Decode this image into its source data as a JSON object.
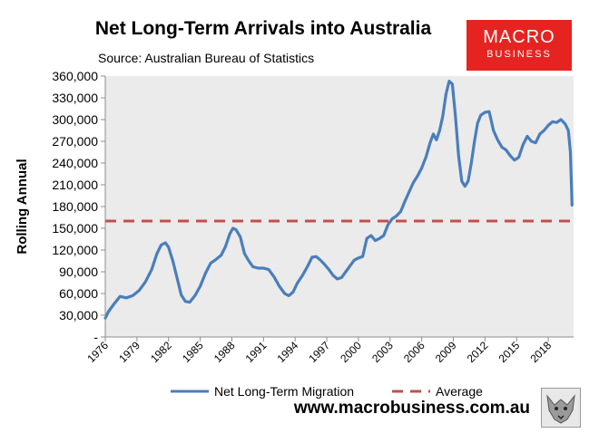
{
  "header": {
    "title": "Net Long-Term Arrivals into Australia",
    "subtitle": "Source: Australian Bureau of Statistics"
  },
  "brand": {
    "line1": "MACRO",
    "line2": "BUSINESS",
    "color": "#e52421",
    "website": "www.macrobusiness.com.au"
  },
  "chart_data": {
    "type": "line",
    "title": "Net Long-Term Arrivals into Australia",
    "subtitle": "Source: Australian Bureau of Statistics",
    "xlabel": "",
    "ylabel": "Rolling Annual",
    "xlim": [
      1976,
      2020.4
    ],
    "ylim": [
      0,
      360000
    ],
    "ytick_values": [
      0,
      30000,
      60000,
      90000,
      120000,
      150000,
      180000,
      210000,
      240000,
      270000,
      300000,
      330000,
      360000
    ],
    "ytick_labels": [
      "-",
      "30,000",
      "60,000",
      "90,000",
      "120,000",
      "150,000",
      "180,000",
      "210,000",
      "240,000",
      "270,000",
      "300,000",
      "330,000",
      "360,000"
    ],
    "xtick_labels": [
      "1976",
      "1979",
      "1982",
      "1985",
      "1988",
      "1991",
      "1994",
      "1997",
      "2000",
      "2003",
      "2006",
      "2009",
      "2012",
      "2015",
      "2018"
    ],
    "grid": false,
    "legend_position": "bottom",
    "series": [
      {
        "name": "Net Long-Term Migration",
        "color": "#4a7ebb",
        "style": "solid",
        "x": [
          1976.0,
          1976.3,
          1976.8,
          1977.4,
          1978.0,
          1978.6,
          1979.2,
          1979.8,
          1980.4,
          1980.9,
          1981.3,
          1981.7,
          1982.0,
          1982.4,
          1982.8,
          1983.2,
          1983.6,
          1984.0,
          1984.5,
          1985.0,
          1985.5,
          1986.0,
          1986.5,
          1987.0,
          1987.4,
          1987.8,
          1988.1,
          1988.4,
          1988.8,
          1989.2,
          1989.6,
          1990.0,
          1990.5,
          1991.0,
          1991.5,
          1992.0,
          1992.5,
          1993.0,
          1993.4,
          1993.8,
          1994.2,
          1994.7,
          1995.2,
          1995.6,
          1996.0,
          1996.4,
          1996.8,
          1997.2,
          1997.6,
          1998.0,
          1998.4,
          1998.8,
          1999.2,
          1999.6,
          2000.0,
          2000.4,
          2000.8,
          2001.2,
          2001.6,
          2002.0,
          2002.4,
          2002.8,
          2003.2,
          2003.6,
          2004.0,
          2004.4,
          2004.8,
          2005.2,
          2005.6,
          2006.0,
          2006.4,
          2006.8,
          2007.1,
          2007.4,
          2007.7,
          2008.0,
          2008.3,
          2008.6,
          2008.9,
          2009.2,
          2009.5,
          2009.8,
          2010.1,
          2010.4,
          2010.7,
          2011.0,
          2011.3,
          2011.6,
          2012.0,
          2012.4,
          2012.8,
          2013.2,
          2013.6,
          2014.0,
          2014.4,
          2014.8,
          2015.2,
          2015.6,
          2016.0,
          2016.4,
          2016.8,
          2017.2,
          2017.6,
          2018.0,
          2018.4,
          2018.8,
          2019.2,
          2019.6,
          2019.9,
          2020.1,
          2020.25
        ],
        "values": [
          26000,
          35000,
          45000,
          56000,
          54000,
          57000,
          64000,
          76000,
          93000,
          115000,
          127000,
          130000,
          124000,
          105000,
          82000,
          58000,
          49000,
          48000,
          57000,
          70000,
          88000,
          102000,
          107000,
          113000,
          125000,
          142000,
          150000,
          148000,
          138000,
          115000,
          105000,
          97000,
          95000,
          95000,
          93000,
          83000,
          70000,
          60000,
          57000,
          62000,
          74000,
          85000,
          98000,
          110000,
          111000,
          106000,
          100000,
          93000,
          85000,
          80000,
          82000,
          90000,
          98000,
          106000,
          109000,
          111000,
          136000,
          140000,
          133000,
          136000,
          140000,
          155000,
          163000,
          167000,
          173000,
          187000,
          200000,
          213000,
          222000,
          233000,
          248000,
          268000,
          280000,
          272000,
          285000,
          305000,
          335000,
          353000,
          349000,
          305000,
          250000,
          215000,
          208000,
          215000,
          240000,
          270000,
          295000,
          306000,
          310000,
          311000,
          285000,
          272000,
          262000,
          258000,
          250000,
          244000,
          248000,
          265000,
          277000,
          270000,
          268000,
          280000,
          285000,
          292000,
          297000,
          296000,
          300000,
          294000,
          285000,
          255000,
          182000
        ]
      },
      {
        "name": "Average",
        "color": "#c0504d",
        "style": "dashed",
        "x": [
          1976.0,
          2020.3
        ],
        "values": [
          160000,
          160000
        ]
      }
    ]
  }
}
